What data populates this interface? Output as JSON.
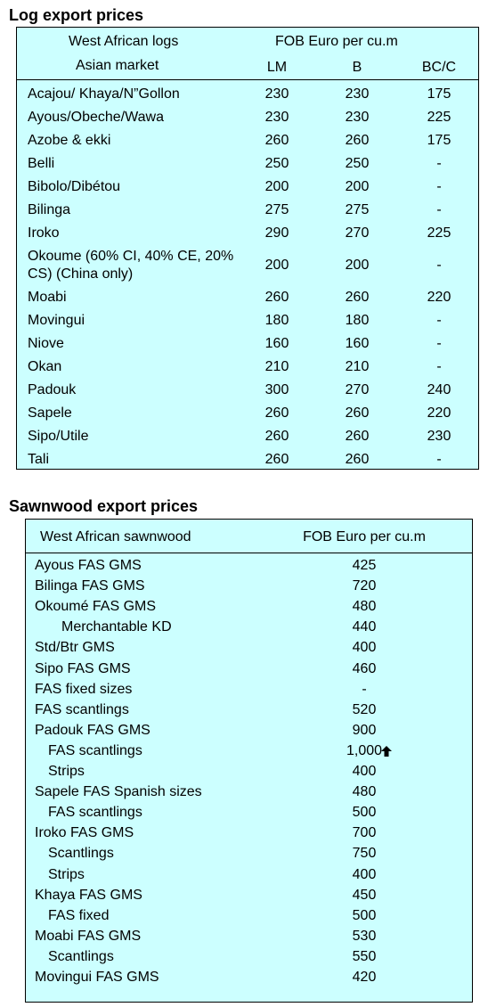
{
  "logs": {
    "title": "Log export prices",
    "header": [
      "West African logs",
      "FOB Euro per cu.m"
    ],
    "columns": [
      "Asian market",
      "LM",
      "B",
      "BC/C"
    ],
    "rows": [
      [
        "Acajou/ Khaya/N”Gollon",
        230,
        230,
        175
      ],
      [
        "Ayous/Obeche/Wawa",
        230,
        230,
        225
      ],
      [
        "Azobe & ekki",
        260,
        260,
        175
      ],
      [
        "Belli",
        250,
        250,
        "-"
      ],
      [
        "Bibolo/Dibétou",
        200,
        200,
        "-"
      ],
      [
        "Bilinga",
        275,
        275,
        "-"
      ],
      [
        "Iroko",
        290,
        270,
        225
      ],
      [
        "Okoume (60% CI, 40% CE, 20% CS) (China only)",
        200,
        200,
        "-"
      ],
      [
        "Moabi",
        260,
        260,
        220
      ],
      [
        "Movingui",
        180,
        180,
        "-"
      ],
      [
        "Niove",
        160,
        160,
        "-"
      ],
      [
        "Okan",
        210,
        210,
        "-"
      ],
      [
        "Padouk",
        300,
        270,
        240
      ],
      [
        "Sapele",
        260,
        260,
        220
      ],
      [
        "Sipo/Utile",
        260,
        260,
        230
      ],
      [
        "Tali",
        260,
        260,
        "-"
      ]
    ]
  },
  "sawnwood": {
    "title": "Sawnwood export prices",
    "columns": [
      "West African sawnwood",
      "FOB Euro per cu.m"
    ],
    "rows": [
      [
        "Ayous FAS GMS",
        425
      ],
      [
        "Bilinga FAS GMS",
        720
      ],
      [
        "Okoumé FAS GMS",
        480
      ],
      [
        "Merchantable KD",
        440
      ],
      [
        "Std/Btr GMS",
        400
      ],
      [
        "Sipo FAS GMS",
        460
      ],
      [
        "FAS fixed sizes",
        "-"
      ],
      [
        "FAS scantlings",
        520
      ],
      [
        "Padouk FAS GMS",
        900
      ],
      [
        "FAS scantlings",
        "1,000"
      ],
      [
        "Strips",
        400
      ],
      [
        "Sapele FAS Spanish sizes",
        480
      ],
      [
        "FAS scantlings",
        500
      ],
      [
        "Iroko FAS GMS",
        700
      ],
      [
        "Scantlings",
        750
      ],
      [
        "Strips",
        400
      ],
      [
        "Khaya FAS GMS",
        450
      ],
      [
        "FAS fixed",
        500
      ],
      [
        "Moabi FAS GMS",
        530
      ],
      [
        "Scantlings",
        550
      ],
      [
        "Movingui FAS GMS",
        420
      ]
    ]
  }
}
